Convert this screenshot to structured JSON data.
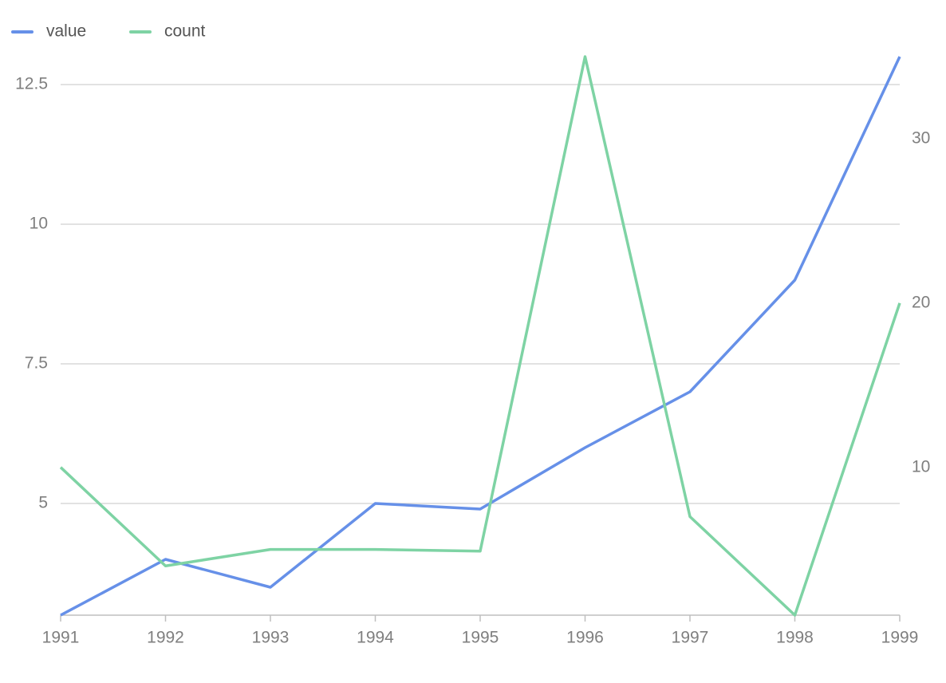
{
  "chart_data": {
    "type": "line",
    "categories": [
      "1991",
      "1992",
      "1993",
      "1994",
      "1995",
      "1996",
      "1997",
      "1998",
      "1999"
    ],
    "series": [
      {
        "name": "value",
        "color": "#6690e8",
        "values": [
          3,
          4,
          3.5,
          5,
          4.9,
          6,
          7,
          9,
          13
        ]
      },
      {
        "name": "count",
        "color": "#7ed3a4",
        "axis": "y2",
        "values": [
          10,
          4,
          5,
          5,
          4.9,
          35,
          7,
          1,
          20
        ]
      }
    ],
    "ylim": [
      3,
      13
    ],
    "yticks": [
      5,
      7.5,
      10,
      12.5
    ],
    "y2lim": [
      1,
      35
    ],
    "y2ticks": [
      10,
      20,
      30
    ],
    "grid": true,
    "legend": "top-left"
  }
}
